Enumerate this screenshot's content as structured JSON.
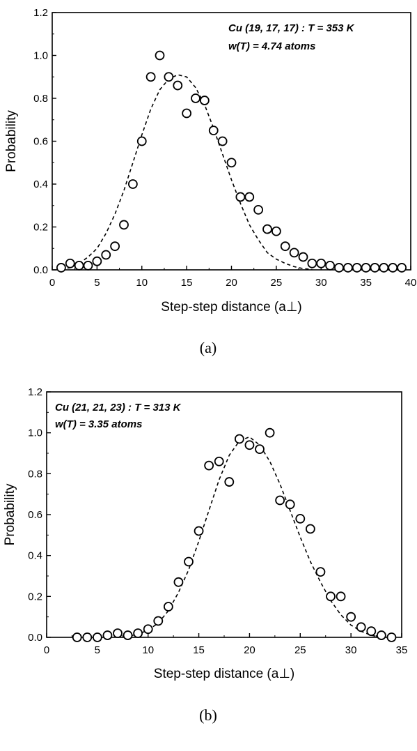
{
  "chart_data": [
    {
      "type": "scatter",
      "caption": "(a)",
      "xlabel": "Step-step distance (a⊥)",
      "ylabel": "Probability",
      "xlim": [
        0,
        40
      ],
      "ylim": [
        0,
        1.2
      ],
      "xticks": [
        0,
        5,
        10,
        15,
        20,
        25,
        30,
        35,
        40
      ],
      "yticks": [
        0.0,
        0.2,
        0.4,
        0.6,
        0.8,
        1.0,
        1.2
      ],
      "annotations": [
        "Cu (19, 17, 17) : T = 353 K",
        "w(T) = 4.74 atoms"
      ],
      "series": [
        {
          "marker": "open-circle",
          "x": [
            1,
            2,
            3,
            4,
            5,
            6,
            7,
            8,
            9,
            10,
            11,
            12,
            13,
            14,
            15,
            16,
            17,
            18,
            19,
            20,
            21,
            22,
            23,
            24,
            25,
            26,
            27,
            28,
            29,
            30,
            31,
            32,
            33,
            34,
            35,
            36,
            37,
            38,
            39
          ],
          "y": [
            0.01,
            0.03,
            0.02,
            0.02,
            0.04,
            0.07,
            0.11,
            0.21,
            0.4,
            0.6,
            0.9,
            1.0,
            0.9,
            0.86,
            0.73,
            0.8,
            0.79,
            0.65,
            0.6,
            0.5,
            0.34,
            0.34,
            0.28,
            0.19,
            0.18,
            0.11,
            0.08,
            0.06,
            0.03,
            0.03,
            0.02,
            0.01,
            0.01,
            0.01,
            0.01,
            0.01,
            0.01,
            0.01,
            0.01
          ]
        },
        {
          "style": "dashed-line",
          "x": [
            1,
            2,
            3,
            4,
            5,
            6,
            7,
            8,
            9,
            10,
            11,
            12,
            13,
            14,
            15,
            16,
            17,
            18,
            19,
            20,
            21,
            22,
            23,
            24,
            25,
            26,
            27,
            28,
            29
          ],
          "y": [
            0.004,
            0.01,
            0.03,
            0.06,
            0.1,
            0.17,
            0.26,
            0.37,
            0.5,
            0.63,
            0.75,
            0.84,
            0.89,
            0.91,
            0.9,
            0.85,
            0.77,
            0.66,
            0.54,
            0.42,
            0.31,
            0.21,
            0.14,
            0.08,
            0.05,
            0.03,
            0.015,
            0.006,
            0.002
          ]
        }
      ]
    },
    {
      "type": "scatter",
      "caption": "(b)",
      "xlabel": "Step-step distance (a⊥)",
      "ylabel": "Probability",
      "xlim": [
        0,
        35
      ],
      "ylim": [
        0,
        1.2
      ],
      "xticks": [
        0,
        5,
        10,
        15,
        20,
        25,
        30,
        35
      ],
      "yticks": [
        0.0,
        0.2,
        0.4,
        0.6,
        0.8,
        1.0,
        1.2
      ],
      "annotations": [
        "Cu (21, 21, 23) : T = 313 K",
        "w(T) = 3.35 atoms"
      ],
      "series": [
        {
          "marker": "open-circle",
          "x": [
            3,
            4,
            5,
            6,
            7,
            8,
            9,
            10,
            11,
            12,
            13,
            14,
            15,
            16,
            17,
            18,
            19,
            20,
            21,
            22,
            23,
            24,
            25,
            26,
            27,
            28,
            29,
            30,
            31,
            32,
            33,
            34
          ],
          "y": [
            0.0,
            0.0,
            0.0,
            0.01,
            0.02,
            0.01,
            0.02,
            0.04,
            0.08,
            0.15,
            0.27,
            0.37,
            0.52,
            0.84,
            0.86,
            0.76,
            0.97,
            0.94,
            0.92,
            1.0,
            0.67,
            0.65,
            0.58,
            0.53,
            0.32,
            0.2,
            0.2,
            0.1,
            0.05,
            0.03,
            0.01,
            0.0
          ]
        },
        {
          "style": "dashed-line",
          "x": [
            7,
            8,
            9,
            10,
            11,
            12,
            13,
            14,
            15,
            16,
            17,
            18,
            19,
            20,
            21,
            22,
            23,
            24,
            25,
            26,
            27,
            28,
            29,
            30,
            31,
            32,
            33
          ],
          "y": [
            0.0,
            0.005,
            0.015,
            0.035,
            0.07,
            0.13,
            0.22,
            0.33,
            0.47,
            0.62,
            0.77,
            0.89,
            0.96,
            0.98,
            0.94,
            0.86,
            0.75,
            0.62,
            0.49,
            0.37,
            0.27,
            0.18,
            0.11,
            0.06,
            0.03,
            0.01,
            0.0
          ]
        }
      ]
    }
  ]
}
